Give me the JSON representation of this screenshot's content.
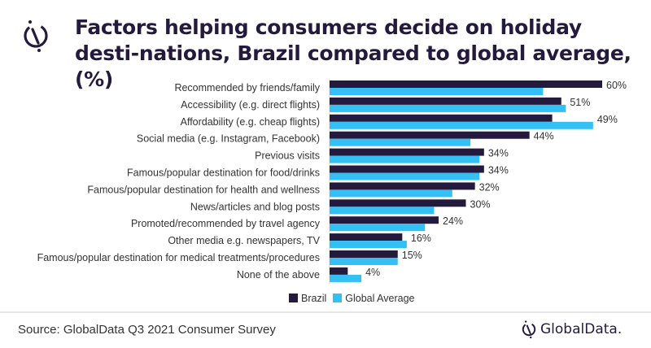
{
  "header": {
    "title": "Factors helping consumers decide on holiday desti-nations, Brazil compared to global average, (%)"
  },
  "footer": {
    "source": "Source: GlobalData Q3 2021 Consumer Survey",
    "brand": "GlobalData."
  },
  "colors": {
    "brazil": "#231a3d",
    "global": "#33c0f5"
  },
  "chart_data": {
    "type": "bar",
    "orientation": "horizontal",
    "title": "Factors helping consumers decide on holiday destinations, Brazil compared to global average, (%)",
    "xlabel": "",
    "ylabel": "",
    "xlim": [
      0,
      60
    ],
    "grid": false,
    "legend_position": "bottom",
    "categories": [
      "Recommended by friends/family",
      "Accessibility (e.g. direct flights)",
      "Affordability (e.g. cheap flights)",
      "Social media (e.g. Instagram, Facebook)",
      "Previous visits",
      "Famous/popular destination for food/drinks",
      "Famous/popular destination for health and wellness",
      "News/articles and blog posts",
      "Promoted/recommended by travel agency",
      "Other media e.g. newspapers, TV",
      "Famous/popular destination for medical treatments/procedures",
      "None of the above"
    ],
    "series": [
      {
        "name": "Brazil",
        "values": [
          60,
          51,
          49,
          44,
          34,
          34,
          32,
          30,
          24,
          16,
          15,
          4
        ],
        "labeled": true
      },
      {
        "name": "Global Average",
        "values": [
          47,
          52,
          58,
          31,
          33,
          33,
          27,
          23,
          21,
          17,
          15,
          7
        ],
        "labeled": false
      }
    ],
    "data_labels": [
      "60%",
      "51%",
      "49%",
      "44%",
      "34%",
      "34%",
      "32%",
      "30%",
      "24%",
      "16%",
      "15%",
      "4%"
    ]
  }
}
